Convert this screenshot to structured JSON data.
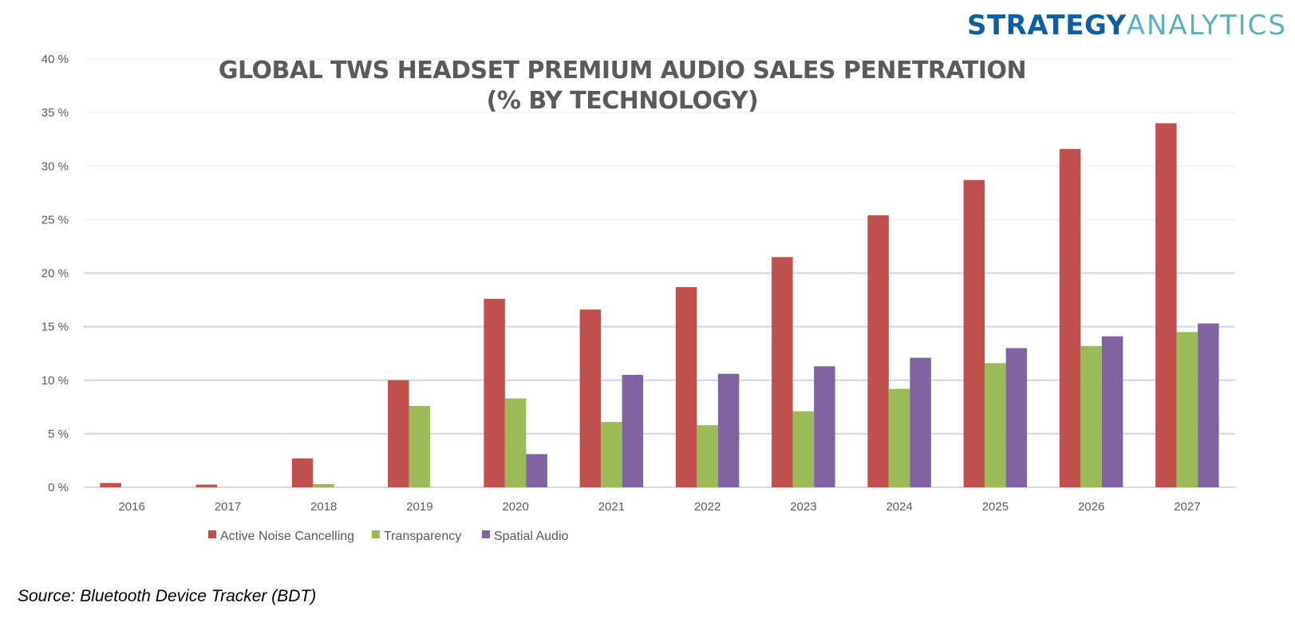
{
  "logo": {
    "part1": "STRATEGY",
    "part2": "ANALYTICS"
  },
  "source": "Source: Bluetooth Device Tracker (BDT)",
  "chart_data": {
    "type": "bar",
    "title_line1": "GLOBAL TWS HEADSET PREMIUM AUDIO SALES PENETRATION",
    "title_line2": "(% BY TECHNOLOGY)",
    "xlabel": "",
    "ylabel": "",
    "ylim": [
      0,
      40
    ],
    "yticks": [
      0,
      5,
      10,
      15,
      20,
      25,
      30,
      35,
      40
    ],
    "ytick_labels": [
      "0 %",
      "5 %",
      "10 %",
      "15 %",
      "20 %",
      "25 %",
      "30 %",
      "35 %",
      "40 %"
    ],
    "grid": true,
    "legend_position": "bottom-left",
    "categories": [
      "2016",
      "2017",
      "2018",
      "2019",
      "2020",
      "2021",
      "2022",
      "2023",
      "2024",
      "2025",
      "2026",
      "2027"
    ],
    "series": [
      {
        "name": "Active Noise Cancelling",
        "color": "#c0504d",
        "values": [
          0.4,
          0.25,
          2.7,
          10.0,
          17.6,
          16.6,
          18.7,
          21.5,
          25.4,
          28.7,
          31.6,
          34.0
        ]
      },
      {
        "name": "Transparency",
        "color": "#9bbb59",
        "values": [
          0,
          0,
          0.3,
          7.6,
          8.3,
          6.1,
          5.8,
          7.1,
          9.2,
          11.6,
          13.2,
          14.5
        ]
      },
      {
        "name": "Spatial Audio",
        "color": "#8064a2",
        "values": [
          0,
          0,
          0,
          0,
          3.1,
          10.5,
          10.6,
          11.3,
          12.1,
          13.0,
          14.1,
          15.3
        ]
      }
    ]
  }
}
